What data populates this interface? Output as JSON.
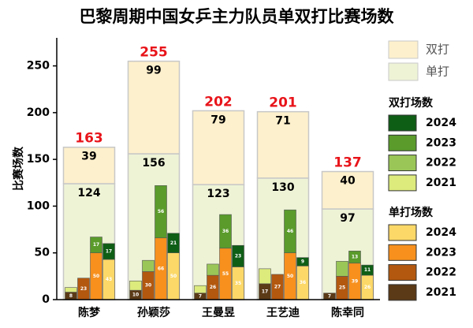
{
  "chart_data": {
    "type": "grouped_stacked_bar",
    "title": "巴黎周期中国女乒主力队员单双打比赛场数",
    "y_label": "比赛场数",
    "categories": [
      "陈梦",
      "孙颖莎",
      "王曼昱",
      "王艺迪",
      "陈幸同"
    ],
    "ylim": [
      0,
      280
    ],
    "yticks": [
      0,
      50,
      100,
      150,
      200,
      250
    ],
    "totals": {
      "color": "#e8141a",
      "values": [
        163,
        255,
        202,
        201,
        137
      ]
    },
    "background_series": [
      {
        "name": "单打",
        "color": "#eef3d6",
        "values": [
          124,
          156,
          123,
          130,
          97
        ]
      },
      {
        "name": "双打",
        "color": "#fdf0cc",
        "values": [
          39,
          99,
          79,
          71,
          40
        ]
      }
    ],
    "doubles_legend_title": "双打场数",
    "singles_legend_title": "单打场数",
    "singles_series": [
      {
        "name": "2021",
        "color": "#5b3a17",
        "values": [
          8,
          10,
          7,
          17,
          7
        ],
        "labels": true
      },
      {
        "name": "2022",
        "color": "#b3580f",
        "values": [
          23,
          30,
          26,
          27,
          25
        ],
        "labels": true
      },
      {
        "name": "2023",
        "color": "#f7901d",
        "values": [
          50,
          66,
          55,
          50,
          39
        ],
        "labels": true
      },
      {
        "name": "2024",
        "color": "#fcd868",
        "values": [
          43,
          50,
          35,
          36,
          26
        ],
        "labels": true
      }
    ],
    "doubles_series": [
      {
        "name": "2021",
        "color": "#dceb7c",
        "values": [
          5,
          10,
          8,
          16,
          0
        ],
        "labels": false
      },
      {
        "name": "2022",
        "color": "#9ac657",
        "values": [
          0,
          12,
          12,
          0,
          16
        ],
        "labels": false
      },
      {
        "name": "2023",
        "color": "#5a9b2b",
        "values": [
          17,
          56,
          36,
          46,
          13
        ],
        "labels": true
      },
      {
        "name": "2024",
        "color": "#0f5e16",
        "values": [
          17,
          21,
          23,
          9,
          11
        ],
        "labels": true
      }
    ]
  }
}
